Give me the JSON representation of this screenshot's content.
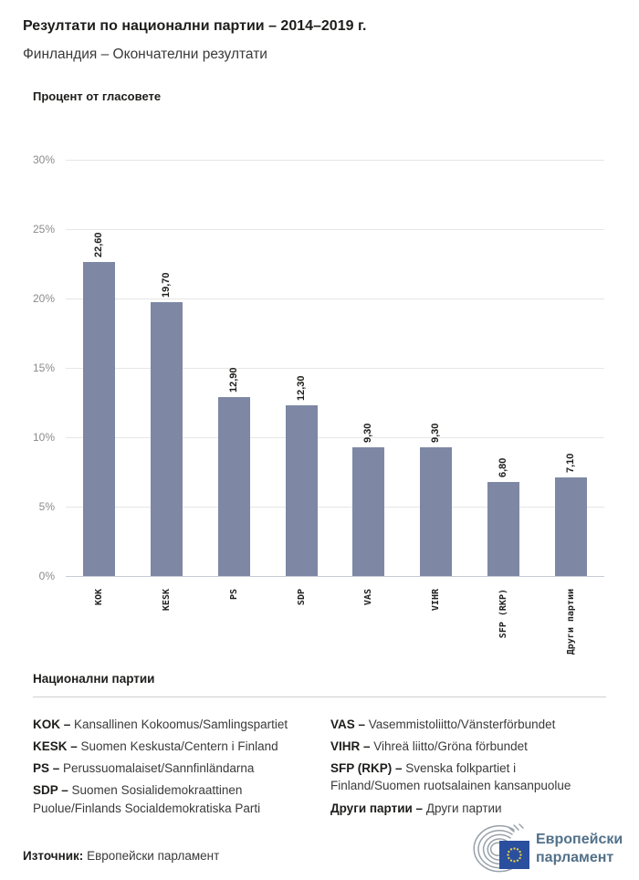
{
  "header": {
    "title": "Резултати по национални партии – 2014–2019 г.",
    "subtitle": "Финландия – Окончателни резултати"
  },
  "chart_data": {
    "type": "bar",
    "title": "Резултати по национални партии – 2014–2019 г.",
    "subtitle": "Финландия – Окончателни резултати",
    "axis_title": "Процент от гласовете",
    "categories": [
      "KOK",
      "KESK",
      "PS",
      "SDP",
      "VAS",
      "VIHR",
      "SFP (RKP)",
      "Други партии"
    ],
    "values": [
      22.6,
      19.7,
      12.9,
      12.3,
      9.3,
      9.3,
      6.8,
      7.1
    ],
    "value_labels": [
      "22,60",
      "19,70",
      "12,90",
      "12,30",
      "9,30",
      "9,30",
      "6,80",
      "7,10"
    ],
    "ytick_labels": [
      "30%",
      "25%",
      "20%",
      "15%",
      "10%",
      "5%",
      "0%"
    ],
    "yticks": [
      30,
      25,
      20,
      15,
      10,
      5,
      0
    ],
    "ylim": [
      0,
      30
    ],
    "xlabel": "",
    "ylabel": "Процент от гласовете",
    "grid": "horizontal",
    "legend_position": "none",
    "bar_color": "#7e88a5"
  },
  "legend": {
    "heading": "Национални партии",
    "columns": [
      [
        {
          "code": "KOK –",
          "name": "Kansallinen Kokoomus/Samlingspartiet"
        },
        {
          "code": "KESK –",
          "name": "Suomen Keskusta/Centern i Finland"
        },
        {
          "code": "PS –",
          "name": "Perussuomalaiset/Sannfinländarna"
        },
        {
          "code": "SDP –",
          "name": "Suomen Sosialidemokraattinen Puolue/Finlands Socialdemokratiska Parti"
        }
      ],
      [
        {
          "code": "VAS –",
          "name": "Vasemmistoliitto/Vänsterförbundet"
        },
        {
          "code": "VIHR –",
          "name": "Vihreä liitto/Gröna förbundet"
        },
        {
          "code": "SFP (RKP) –",
          "name": "Svenska folkpartiet i Finland/Suomen ruotsalainen kansanpuolue"
        },
        {
          "code": "Други партии –",
          "name": "Други партии"
        }
      ]
    ]
  },
  "footer": {
    "source_label": "Източник:",
    "source_value": "Европейски парламент",
    "logo_line1": "Европейски",
    "logo_line2": "парламент",
    "logo_colors": {
      "square": "#2a4f9e",
      "stars": "#f2d63b",
      "arcs": "#99a1a9",
      "text": "#527189"
    }
  }
}
